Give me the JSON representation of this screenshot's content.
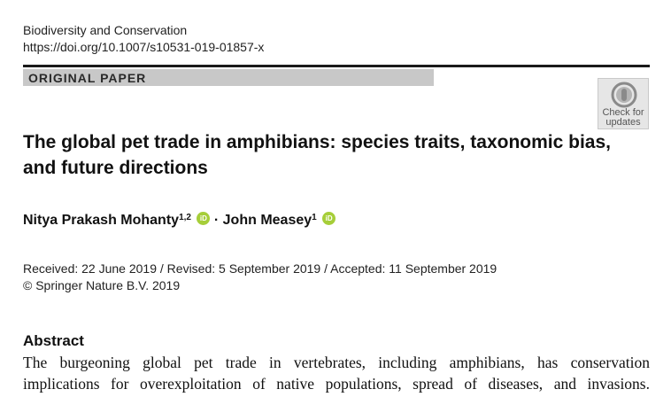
{
  "header": {
    "journal": "Biodiversity and Conservation",
    "doi": "https://doi.org/10.1007/s10531-019-01857-x"
  },
  "section_label": "ORIGINAL PAPER",
  "check_badge": {
    "line1": "Check for",
    "line2": "updates"
  },
  "title": "The global pet trade in amphibians: species traits, taxonomic bias, and future directions",
  "authors": [
    {
      "name": "Nitya Prakash Mohanty",
      "affiliation": "1,2",
      "orcid_label": "iD"
    },
    {
      "name": "John Measey",
      "affiliation": "1",
      "orcid_label": "iD"
    }
  ],
  "author_separator": "·",
  "dates": "Received: 22 June 2019 / Revised: 5 September 2019 / Accepted: 11 September 2019",
  "copyright": "© Springer Nature B.V. 2019",
  "abstract": {
    "heading": "Abstract",
    "lines": [
      "The burgeoning global pet trade in vertebrates, including amphibians, has conservation",
      "implications for overexploitation of native populations, spread of diseases, and invasions."
    ]
  },
  "colors": {
    "section_bar": "#c8c8c8",
    "orcid": "#a6ce39",
    "badge_bg": "#e6e6e6"
  }
}
